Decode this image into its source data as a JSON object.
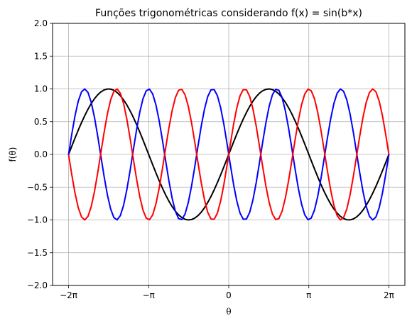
{
  "chart_data": {
    "type": "line",
    "title": "Funções trigonométricas considerando f(x) = sin(b*x)",
    "xlabel": "θ",
    "ylabel": "f(θ)",
    "xlim": [
      -6.2832,
      6.2832
    ],
    "ylim": [
      -2.0,
      2.0
    ],
    "grid": true,
    "x_ticks": [
      {
        "value": -6.2832,
        "label": "−2π"
      },
      {
        "value": -3.1416,
        "label": "−π"
      },
      {
        "value": 0,
        "label": "0"
      },
      {
        "value": 3.1416,
        "label": "π"
      },
      {
        "value": 6.2832,
        "label": "2π"
      }
    ],
    "y_ticks": [
      {
        "value": -2.0,
        "label": "−2.0"
      },
      {
        "value": -1.5,
        "label": "−1.5"
      },
      {
        "value": -1.0,
        "label": "−1.0"
      },
      {
        "value": -0.5,
        "label": "−0.5"
      },
      {
        "value": 0.0,
        "label": "0.0"
      },
      {
        "value": 0.5,
        "label": "0.5"
      },
      {
        "value": 1.0,
        "label": "1.0"
      },
      {
        "value": 1.5,
        "label": "1.5"
      },
      {
        "value": 2.0,
        "label": "2.0"
      }
    ],
    "series": [
      {
        "function": "sin(b*x)",
        "b": 1,
        "color": "#000000",
        "sample_count": 100
      },
      {
        "function": "sin(b*x)",
        "b": -2.5,
        "color": "#0000ff",
        "sample_count": 100
      },
      {
        "function": "sin(b*x)",
        "b": 2.5,
        "color": "#ff0000",
        "sample_count": 100
      }
    ]
  }
}
